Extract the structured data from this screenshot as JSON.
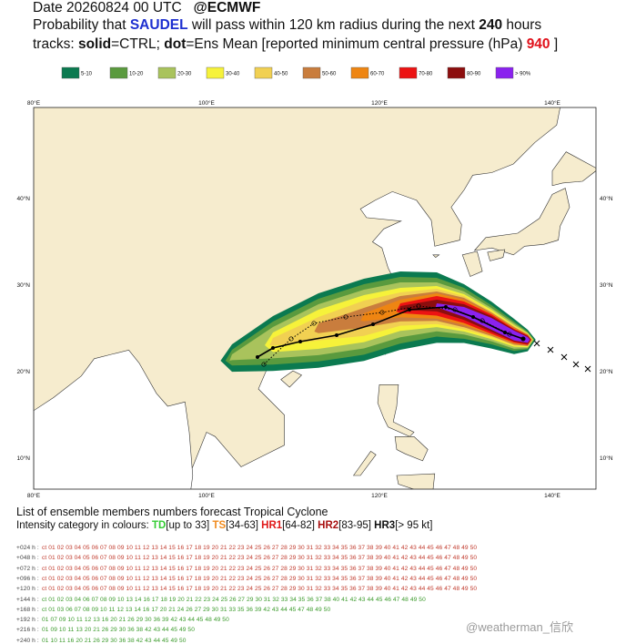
{
  "header": {
    "date": "Date 20260824 00 UTC",
    "source": "@ECMWF",
    "line2": [
      "Probability that ",
      "SAUDEL",
      " will pass within 120 km radius during the next ",
      "240",
      " hours"
    ],
    "line3": [
      "tracks: ",
      "solid",
      "=CTRL; ",
      "dot",
      "=Ens Mean [reported minimum central pressure (hPa) ",
      "940",
      " ]"
    ]
  },
  "legend": [
    {
      "label": "5-10",
      "color": "#0b7a50"
    },
    {
      "label": "10-20",
      "color": "#5a9a3e"
    },
    {
      "label": "20-30",
      "color": "#a9c35c"
    },
    {
      "label": "30-40",
      "color": "#f6f23a"
    },
    {
      "label": "40-50",
      "color": "#f1d052"
    },
    {
      "label": "50-60",
      "color": "#c97d3d"
    },
    {
      "label": "60-70",
      "color": "#ee8512"
    },
    {
      "label": "70-80",
      "color": "#ec1313"
    },
    {
      "label": "80-90",
      "color": "#8c0e0e"
    },
    {
      "label": "> 90%",
      "color": "#8a22ee"
    }
  ],
  "map": {
    "lon_labels": [
      "80°E",
      "100°E",
      "120°E",
      "140°E"
    ],
    "lat_labels": [
      "40°N",
      "30°N",
      "20°N",
      "10°N"
    ]
  },
  "list": {
    "title": "List of ensemble members numbers forecast Tropical Cyclone",
    "intensity": [
      "Intensity category in colours: ",
      "TD",
      "[up to 33] ",
      "TS",
      "[34-63] ",
      "HR1",
      "[64-82] ",
      "HR2",
      "[83-95] ",
      "HR3",
      "[> 95 kt]"
    ],
    "rows": [
      {
        "label": "+024 h :",
        "members": "ct 01 02 03 04 05 06 07 08 09 10 11 12 13 14 15 16 17 18 19 20 21 22 23 24 25 26 27 28 29 30 31 32 33 34 35 36 37 38 39 40 41 42 43 44 45 46 47 48 49 50"
      },
      {
        "label": "+048 h :",
        "members": "ct 01 02 03 04 05 06 07 08 09 10 11 12 13 14 15 16 17 18 19 20 21 22 23 24 25 26 27 28 29 30 31 32 33 34 35 36 37 38 39 40 41 42 43 44 45 46 47 48 49 50"
      },
      {
        "label": "+072 h :",
        "members": "ct 01 02 03 04 05 06 07 08 09 10 11 12 13 14 15 16 17 18 19 20 21 22 23 24 25 26 27 28 29 30 31 32 33 34 35 36 37 38 39 40 41 42 43 44 45 46 47 48 49 50"
      },
      {
        "label": "+096 h :",
        "members": "ct 01 02 03 04 05 06 07 08 09 10 11 12 13 14 15 16 17 18 19 20 21 22 23 24 25 26 27 28 29 30 31 32 33 34 35 36 37 38 39 40 41 42 43 44 45 46 47 48 49 50"
      },
      {
        "label": "+120 h :",
        "members": "ct 01 02 03 04 05 06 07 08 09 10 11 12 13 14 15 16 17 18 19 20 21 22 23 24 25 26 27 28 29 30 31 32 33 34 35 36 37 38 39 40 41 42 43 44 45 46 47 48 49 50"
      },
      {
        "label": "+144 h :",
        "members": "ct 01 02 03 04 06 07 08 09 10 13 14 16 17 18 19 20 21 22 23 24 25 26 27 29 30 31 32 33 34 35 36 37 38 40 41 42 43 44 45 46 47 48 49 50"
      },
      {
        "label": "+168 h :",
        "members": "ct 01 03 06 07 08 09 10 11 12 13 14 16 17 20 21 24 26 27 29 30 31 33 35 36 39 42 43 44 45 47 48 49 50"
      },
      {
        "label": "+192 h :",
        "members": "01 07 09 10 11 12 13 16 20 21 26 29 30 36 39 42 43 44 45 48 49 50"
      },
      {
        "label": "+216 h :",
        "members": "01 09 10 11 13 20 21 26 29 30 36 38 42 43 44 45 49 50"
      },
      {
        "label": "+240 h :",
        "members": "01 10 11 16 20 21 26 29 30 36 38 42 43 44 45 49 50"
      }
    ]
  },
  "watermark": "@weatherman_信欣"
}
